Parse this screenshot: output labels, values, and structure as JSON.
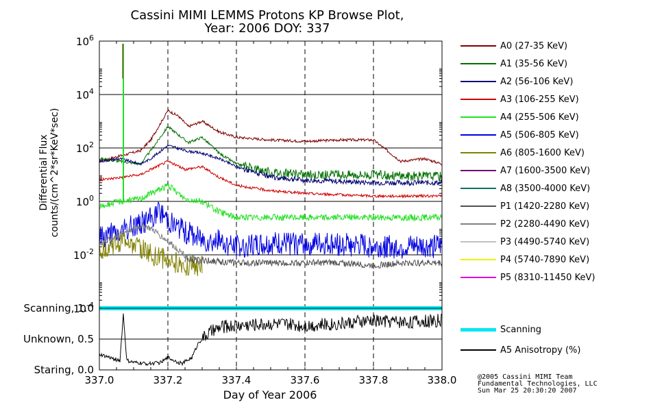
{
  "chart_data": {
    "type": "line",
    "title_line1": "Cassini MIMI LEMMS Protons KP Browse Plot,",
    "title_line2": "Year: 2006 DOY: 337",
    "ylabel_line1": "Differential Flux",
    "ylabel_line2": "counts/(cm^2*sr*KeV*sec)",
    "xlabel": "Day of Year 2006",
    "xlim": [
      337.0,
      338.0
    ],
    "x_ticks": [
      "337.0",
      "337.2",
      "337.4",
      "337.6",
      "337.8",
      "338.0"
    ],
    "ylim_log10": [
      -4,
      6
    ],
    "y_tick_exponents": [
      "-4",
      "-2",
      "0",
      "2",
      "4",
      "6"
    ],
    "y_tick_base": "10",
    "lower_panel_ticks": [
      "Scanning, 1.0",
      "Unknown, 0.5",
      "Staring, 0.0"
    ],
    "lower_panel_ylim": [
      0.0,
      1.0
    ],
    "series": [
      {
        "name": "A0 (27-35 KeV)",
        "color": "#800000",
        "x": [
          337.0,
          337.06,
          337.12,
          337.15,
          337.2,
          337.23,
          337.26,
          337.3,
          337.35,
          337.4,
          337.5,
          337.6,
          337.7,
          337.8,
          337.88,
          337.95,
          338.0
        ],
        "log10_values": [
          1.5,
          1.7,
          1.9,
          2.3,
          3.4,
          3.2,
          2.8,
          3.0,
          2.6,
          2.4,
          2.3,
          2.25,
          2.3,
          2.3,
          1.5,
          1.6,
          1.4
        ]
      },
      {
        "name": "A1 (35-56 KeV)",
        "color": "#007000",
        "x": [
          337.0,
          337.06,
          337.12,
          337.15,
          337.2,
          337.23,
          337.26,
          337.3,
          337.35,
          337.4,
          337.5,
          337.6,
          337.7,
          337.8,
          337.9,
          338.0
        ],
        "log10_values": [
          1.6,
          1.5,
          1.4,
          1.9,
          2.8,
          2.5,
          2.2,
          2.4,
          1.8,
          1.4,
          1.1,
          1.0,
          1.0,
          1.0,
          0.95,
          0.95
        ]
      },
      {
        "name": "A2 (56-106 KeV)",
        "color": "#000070",
        "x": [
          337.0,
          337.06,
          337.12,
          337.15,
          337.2,
          337.25,
          337.3,
          337.35,
          337.4,
          337.45,
          337.5,
          337.6,
          337.7,
          337.8,
          337.9,
          338.0
        ],
        "log10_values": [
          1.5,
          1.6,
          1.4,
          1.6,
          2.1,
          1.9,
          1.8,
          1.6,
          1.3,
          1.1,
          0.9,
          0.8,
          0.75,
          0.7,
          0.7,
          0.7
        ]
      },
      {
        "name": "A3 (106-255 KeV)",
        "color": "#d00000",
        "x": [
          337.0,
          337.06,
          337.12,
          337.15,
          337.2,
          337.25,
          337.3,
          337.35,
          337.4,
          337.5,
          337.6,
          337.7,
          337.8,
          337.9,
          338.0
        ],
        "log10_values": [
          0.8,
          0.9,
          1.0,
          1.2,
          1.5,
          1.2,
          1.3,
          0.9,
          0.6,
          0.4,
          0.3,
          0.25,
          0.2,
          0.2,
          0.2
        ]
      },
      {
        "name": "A4 (255-506 KeV)",
        "color": "#20e020",
        "x": [
          337.0,
          337.06,
          337.12,
          337.15,
          337.2,
          337.25,
          337.3,
          337.35,
          337.4,
          337.5,
          337.6,
          337.7,
          337.8,
          337.9,
          338.0
        ],
        "log10_values": [
          -0.2,
          0.0,
          0.1,
          0.3,
          0.6,
          0.1,
          0.0,
          -0.4,
          -0.6,
          -0.6,
          -0.6,
          -0.6,
          -0.6,
          -0.6,
          -0.6
        ]
      },
      {
        "name": "A5 (506-805 KeV)",
        "color": "#0000e0",
        "x": [
          337.0,
          337.06,
          337.1,
          337.14,
          337.18,
          337.22,
          337.26,
          337.3,
          337.35,
          337.4,
          337.5,
          337.6,
          337.7,
          337.8,
          337.9,
          338.0
        ],
        "log10_values": [
          -1.3,
          -1.2,
          -0.9,
          -0.7,
          -0.4,
          -0.9,
          -1.2,
          -1.4,
          -1.5,
          -1.7,
          -1.6,
          -1.6,
          -1.6,
          -1.7,
          -1.7,
          -1.7
        ]
      },
      {
        "name": "A6 (805-1600 KeV)",
        "color": "#808000",
        "x": [
          337.0,
          337.05,
          337.08,
          337.11,
          337.14,
          337.17,
          337.2,
          337.25,
          337.3
        ],
        "log10_values": [
          -1.8,
          -1.6,
          -1.4,
          -1.7,
          -1.9,
          -2.1,
          -2.2,
          -2.4,
          -2.4
        ]
      },
      {
        "name": "A7 (1600-3500 KeV)",
        "color": "#700070",
        "x": [],
        "log10_values": []
      },
      {
        "name": "A8 (3500-4000 KeV)",
        "color": "#007070",
        "x": [],
        "log10_values": []
      },
      {
        "name": "P1 (1420-2280 KeV)",
        "color": "#505050",
        "x": [
          337.25,
          337.3,
          337.4,
          337.5,
          337.6,
          337.7,
          337.8,
          337.9,
          338.0
        ],
        "log10_values": [
          -2.2,
          -2.2,
          -2.3,
          -2.3,
          -2.3,
          -2.3,
          -2.4,
          -2.3,
          -2.3
        ]
      },
      {
        "name": "P2 (2280-4490 KeV)",
        "color": "#808080",
        "x": [
          337.0,
          337.05,
          337.1,
          337.13,
          337.16,
          337.2,
          337.25,
          337.3
        ],
        "log10_values": [
          -1.6,
          -1.3,
          -1.0,
          -0.9,
          -1.1,
          -1.5,
          -2.0,
          -2.3
        ]
      },
      {
        "name": "P3 (4490-5740 KeV)",
        "color": "#c0c0c0",
        "x": [],
        "log10_values": []
      },
      {
        "name": "P4 (5740-7890 KeV)",
        "color": "#f0f000",
        "x": [],
        "log10_values": []
      },
      {
        "name": "P5 (8310-11450 KeV)",
        "color": "#e000e0",
        "x": [],
        "log10_values": []
      }
    ],
    "lower_series": [
      {
        "name": "Scanning",
        "color": "#00e8f0",
        "x": [
          337.0,
          338.0
        ],
        "values": [
          1.0,
          1.0
        ]
      },
      {
        "name": "A5 Anisotropy (%)",
        "color": "#000000",
        "x": [
          337.0,
          337.03,
          337.06,
          337.07,
          337.08,
          337.1,
          337.14,
          337.18,
          337.2,
          337.24,
          337.27,
          337.29,
          337.32,
          337.36,
          337.4,
          337.5,
          337.6,
          337.7,
          337.8,
          337.9,
          338.0
        ],
        "values": [
          0.25,
          0.2,
          0.15,
          0.9,
          0.15,
          0.12,
          0.1,
          0.12,
          0.2,
          0.1,
          0.2,
          0.45,
          0.6,
          0.7,
          0.72,
          0.75,
          0.72,
          0.75,
          0.8,
          0.78,
          0.8
        ]
      }
    ]
  },
  "credits": {
    "line1": "@2005 Cassini MIMI Team",
    "line2": "Fundamental Technologies, LLC",
    "line3": "Sun Mar 25 20:30:20 2007"
  }
}
